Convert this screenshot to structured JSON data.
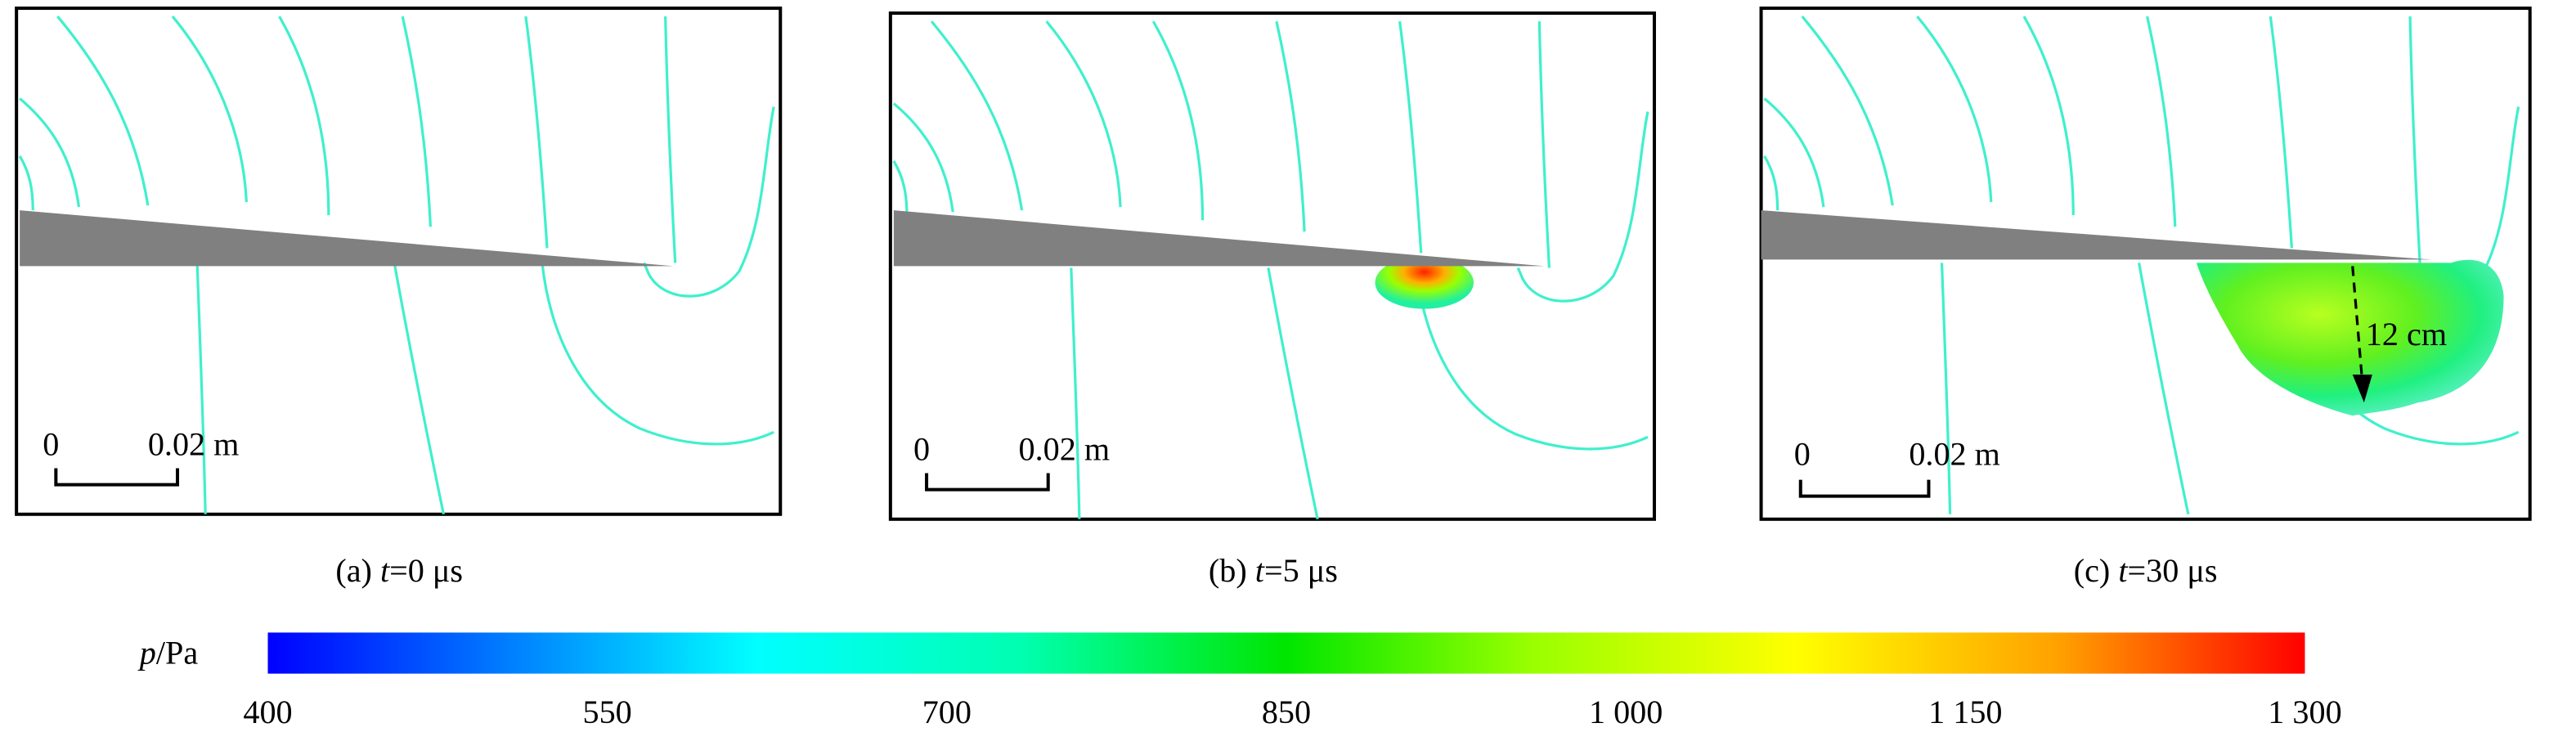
{
  "chart_data": {
    "type": "heatmap",
    "title": "",
    "variable_label": {
      "italic": "p",
      "rest": "/Pa"
    },
    "colorbar": {
      "range": [
        400,
        1300
      ],
      "ticks": [
        400,
        550,
        700,
        850,
        1000,
        1150,
        1300
      ],
      "tick_labels": [
        "400",
        "550",
        "700",
        "850",
        "1 000",
        "1 150",
        "1 300"
      ],
      "colormap": [
        "#0000ff",
        "#0080ff",
        "#00ffff",
        "#00ffb0",
        "#00e600",
        "#99ff00",
        "#ffff00",
        "#ffa000",
        "#ff0000"
      ]
    },
    "panels": [
      {
        "prefix": "(a) ",
        "var": "t",
        "suffix": "=0 μs",
        "time_us": 0,
        "scale_zero": "0",
        "scale_label": "0.02 m",
        "annotation": ""
      },
      {
        "prefix": "(b) ",
        "var": "t",
        "suffix": "=5 μs",
        "time_us": 5,
        "scale_zero": "0",
        "scale_label": "0.02 m",
        "annotation": ""
      },
      {
        "prefix": "(c) ",
        "var": "t",
        "suffix": "=30 μs",
        "time_us": 30,
        "scale_zero": "0",
        "scale_label": "0.02 m",
        "annotation": "12 cm"
      }
    ]
  }
}
